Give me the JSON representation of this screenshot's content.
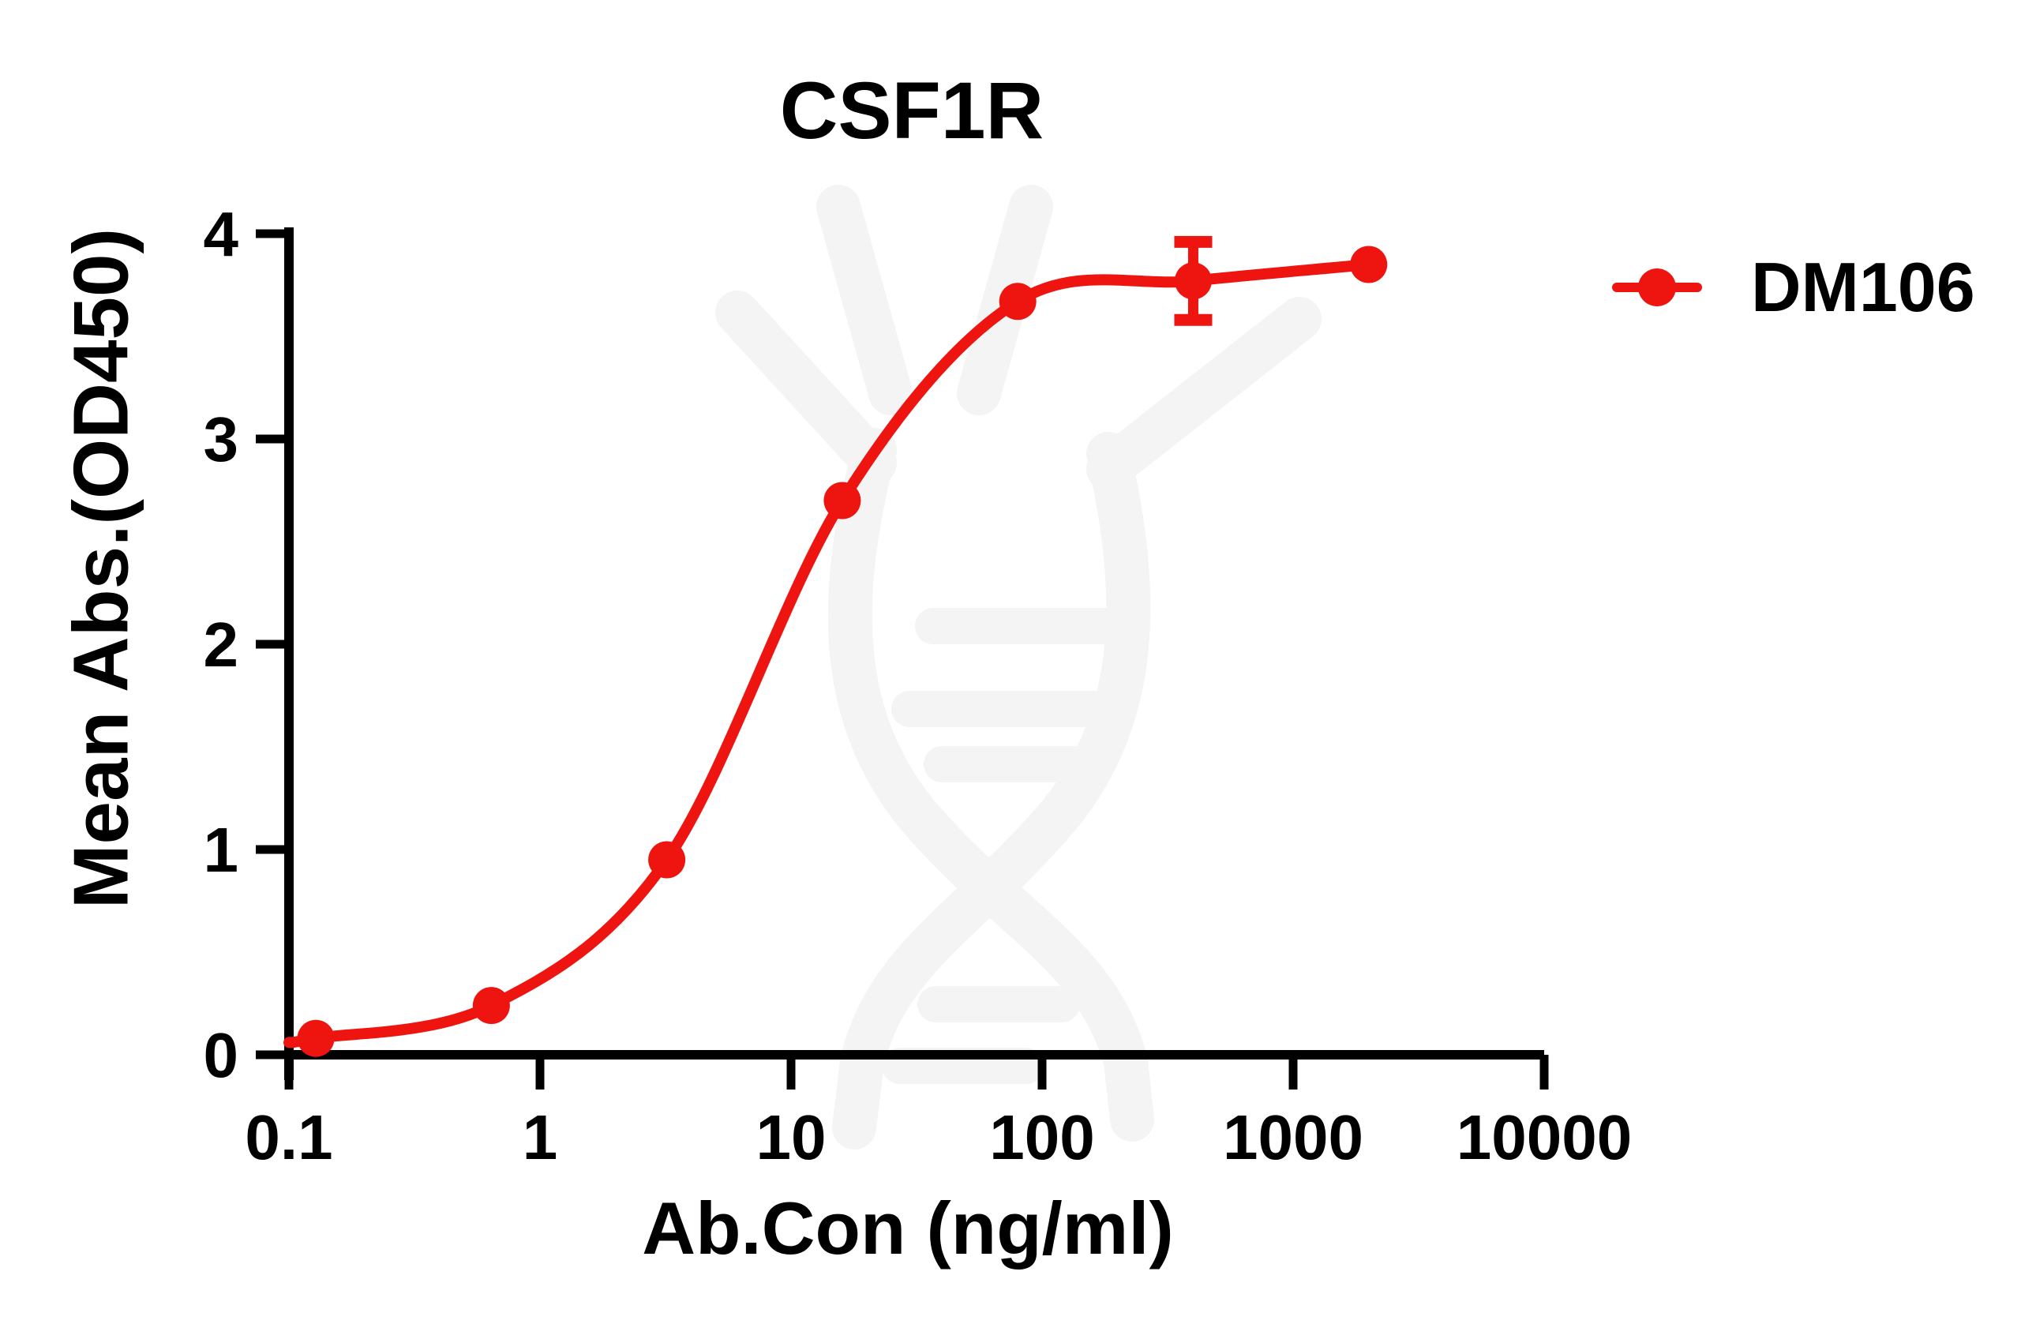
{
  "page": {
    "background": "#ffffff"
  },
  "title": "CSF1R",
  "axes": {
    "x_label": "Ab.Con (ng/ml)",
    "y_label": "Mean Abs.(OD450)"
  },
  "legend": {
    "label": "DM106",
    "position": "top-right"
  },
  "colors": {
    "series": "#ee1511",
    "axis": "#000000",
    "text": "#000000",
    "watermark": "#f4f4f4",
    "background": "#ffffff"
  },
  "chart_data": {
    "type": "line",
    "title": "CSF1R",
    "xlabel": "Ab.Con (ng/ml)",
    "ylabel": "Mean Abs.(OD450)",
    "x_scale": "log10",
    "xlim": [
      0.1,
      10000
    ],
    "ylim": [
      0,
      4
    ],
    "x_ticks": [
      0.1,
      1,
      10,
      100,
      1000,
      10000
    ],
    "x_tick_labels": [
      "0.1",
      "1",
      "10",
      "100",
      "1000",
      "10000"
    ],
    "y_ticks": [
      0,
      1,
      2,
      3,
      4
    ],
    "grid": false,
    "legend_position": "right-top",
    "series": [
      {
        "name": "DM106",
        "color": "#ee1511",
        "marker": "circle",
        "x": [
          0.128,
          0.64,
          3.2,
          16,
          80,
          400,
          2000
        ],
        "y": [
          0.08,
          0.24,
          0.95,
          2.7,
          3.67,
          3.77,
          3.85
        ],
        "y_err": [
          0,
          0,
          0,
          0,
          0,
          0.19,
          0
        ]
      }
    ],
    "curve_start": {
      "x": 0.1,
      "y": 0.06
    }
  }
}
